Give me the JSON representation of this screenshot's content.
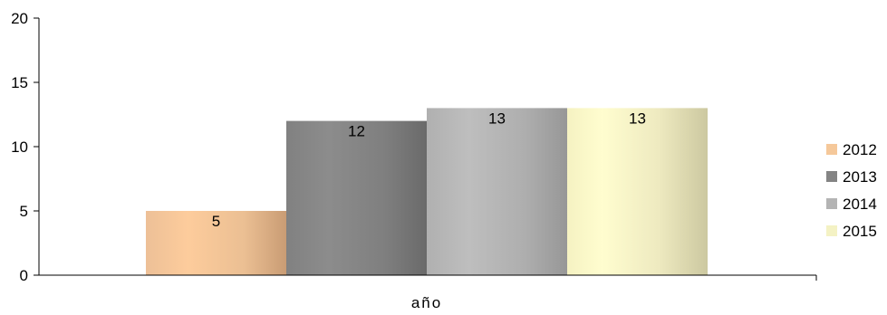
{
  "chart_data": {
    "type": "bar",
    "title": "",
    "xlabel": "año",
    "ylabel": "",
    "categories": [
      "año"
    ],
    "ylim": [
      0,
      20
    ],
    "yticks": [
      0,
      5,
      10,
      15,
      20
    ],
    "grid": false,
    "legend_position": "right",
    "series": [
      {
        "name": "2012",
        "values": [
          5
        ],
        "color": "#F5C89A"
      },
      {
        "name": "2013",
        "values": [
          12
        ],
        "color": "#848484"
      },
      {
        "name": "2014",
        "values": [
          13
        ],
        "color": "#B4B4B4"
      },
      {
        "name": "2015",
        "values": [
          13
        ],
        "color": "#F4F2C4"
      }
    ],
    "data_labels": [
      "5",
      "12",
      "13",
      "13"
    ]
  }
}
